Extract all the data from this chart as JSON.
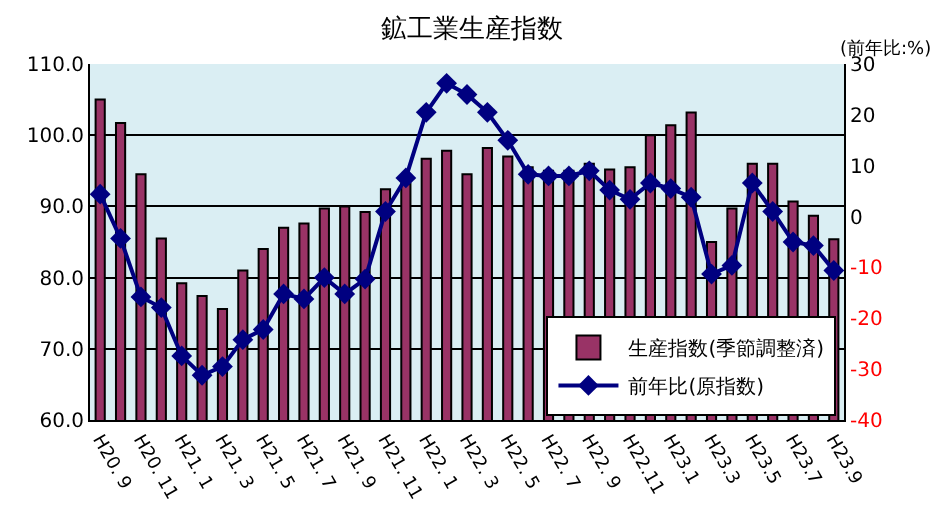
{
  "chart_data": {
    "type": "bar",
    "title": "鉱工業生産指数",
    "y2label": "(前年比:%)",
    "categories": [
      "H20. 9",
      null,
      "H20. 11",
      null,
      "H21. 1",
      null,
      "H21. 3",
      null,
      "H21. 5",
      null,
      "H21. 7",
      null,
      "H21. 9",
      null,
      "H21. 11",
      null,
      "H22. 1",
      null,
      "H22. 3",
      null,
      "H22. 5",
      null,
      "H22. 7",
      null,
      "H22. 9",
      null,
      "H22.11",
      null,
      "H23.1",
      null,
      "H23.3",
      null,
      "H23.5",
      null,
      "H23.7",
      null,
      "H23.9"
    ],
    "series": [
      {
        "name": "生産指数(季節調整済)",
        "color": "#993366",
        "values": [
          105.0,
          101.7,
          94.5,
          85.5,
          79.2,
          77.4,
          75.6,
          81.0,
          84.0,
          87.0,
          87.6,
          89.7,
          90.0,
          89.2,
          92.4,
          93.2,
          96.7,
          97.8,
          94.5,
          98.2,
          97.0,
          95.5,
          95.0,
          95.0,
          96.0,
          95.2,
          95.5,
          100.0,
          101.4,
          103.2,
          85.0,
          89.7,
          96.0,
          96.0,
          90.7,
          88.7,
          85.4
        ]
      },
      {
        "name": "前年比(原指数)",
        "type": "line",
        "axis": "y2",
        "color": "#000080",
        "marker": "diamond",
        "values": [
          4.4,
          -4.3,
          -15.8,
          -17.9,
          -27.4,
          -31.2,
          -29.5,
          -24.2,
          -22.2,
          -15.2,
          -16.2,
          -12.0,
          -15.2,
          -12.3,
          1.0,
          7.6,
          20.5,
          26.2,
          24.0,
          20.5,
          15.0,
          8.3,
          8.0,
          8.0,
          9.0,
          5.2,
          3.4,
          6.6,
          5.5,
          3.8,
          -11.3,
          -9.6,
          6.6,
          1.0,
          -5.0,
          -5.7,
          -10.6
        ]
      }
    ],
    "ylim": [
      60,
      110
    ],
    "yticks": [
      {
        "value": 60,
        "label": "60.0"
      },
      {
        "value": 70,
        "label": "70.0"
      },
      {
        "value": 80,
        "label": "80.0"
      },
      {
        "value": 90,
        "label": "90.0"
      },
      {
        "value": 100,
        "label": "100.0"
      },
      {
        "value": 110,
        "label": "110.0"
      }
    ],
    "y2lim": [
      -40,
      30
    ],
    "y2ticks": [
      -40,
      -30,
      -20,
      -10,
      0,
      10,
      20,
      30
    ],
    "grid": "y",
    "legend": "bottom right"
  }
}
